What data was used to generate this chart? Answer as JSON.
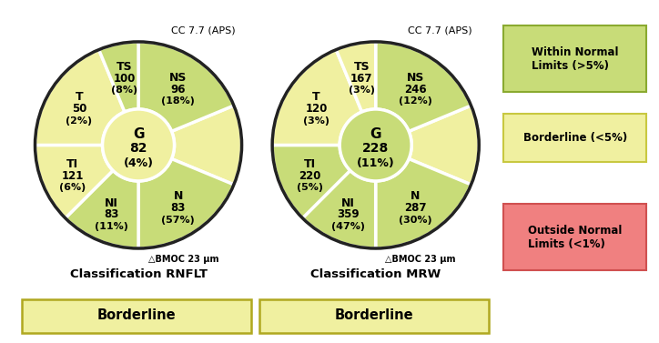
{
  "cc_label": "CC 7.7 (APS)",
  "bmoc_label": "△BMOC 23 μm",
  "chart1": {
    "label": "Classification RNFLT",
    "center_label": "G",
    "center_value": "82",
    "center_pct": "(4%)",
    "center_color": "#f0f0a0",
    "sectors": [
      {
        "name": "top",
        "value": "",
        "pct": "",
        "color": "#f0f0a0",
        "a0": 337.5,
        "a1": 22.5
      },
      {
        "name": "NS",
        "value": "96",
        "pct": "(18%)",
        "color": "#c8dc78",
        "a0": 22.5,
        "a1": 90.0
      },
      {
        "name": "N",
        "value": "83",
        "pct": "(57%)",
        "color": "#c8dc78",
        "a0": 270.0,
        "a1": 337.5
      },
      {
        "name": "NI",
        "value": "83",
        "pct": "(11%)",
        "color": "#c8dc78",
        "a0": 225.0,
        "a1": 270.0
      },
      {
        "name": "TI",
        "value": "121",
        "pct": "(6%)",
        "color": "#f0f0a0",
        "a0": 180.0,
        "a1": 225.0
      },
      {
        "name": "T",
        "value": "50",
        "pct": "(2%)",
        "color": "#f0f0a0",
        "a0": 112.5,
        "a1": 180.0
      },
      {
        "name": "TS",
        "value": "100",
        "pct": "(8%)",
        "color": "#c8dc78",
        "a0": 90.0,
        "a1": 112.5
      }
    ],
    "borderline_color": "#f0f0a0",
    "borderline_text": "Borderline"
  },
  "chart2": {
    "label": "Classification MRW",
    "center_label": "G",
    "center_value": "228",
    "center_pct": "(11%)",
    "center_color": "#c8dc78",
    "sectors": [
      {
        "name": "top",
        "value": "",
        "pct": "",
        "color": "#f0f0a0",
        "a0": 337.5,
        "a1": 22.5
      },
      {
        "name": "NS",
        "value": "246",
        "pct": "(12%)",
        "color": "#c8dc78",
        "a0": 22.5,
        "a1": 90.0
      },
      {
        "name": "N",
        "value": "287",
        "pct": "(30%)",
        "color": "#c8dc78",
        "a0": 270.0,
        "a1": 337.5
      },
      {
        "name": "NI",
        "value": "359",
        "pct": "(47%)",
        "color": "#c8dc78",
        "a0": 225.0,
        "a1": 270.0
      },
      {
        "name": "TI",
        "value": "220",
        "pct": "(5%)",
        "color": "#c8dc78",
        "a0": 180.0,
        "a1": 225.0
      },
      {
        "name": "T",
        "value": "120",
        "pct": "(3%)",
        "color": "#f0f0a0",
        "a0": 112.5,
        "a1": 180.0
      },
      {
        "name": "TS",
        "value": "167",
        "pct": "(3%)",
        "color": "#f0f0a0",
        "a0": 90.0,
        "a1": 112.5
      }
    ],
    "borderline_color": "#f0f0a0",
    "borderline_text": "Borderline"
  },
  "legend": [
    {
      "label": "Within Normal\nLimits (>5%)",
      "color": "#c8dc78",
      "edgecolor": "#8aaa30"
    },
    {
      "label": "Borderline (<5%)",
      "color": "#f0f0a0",
      "edgecolor": "#c8c840"
    },
    {
      "label": "Outside Normal\nLimits (<1%)",
      "color": "#f08080",
      "edgecolor": "#d05050"
    }
  ],
  "bg_color": "#ffffff"
}
